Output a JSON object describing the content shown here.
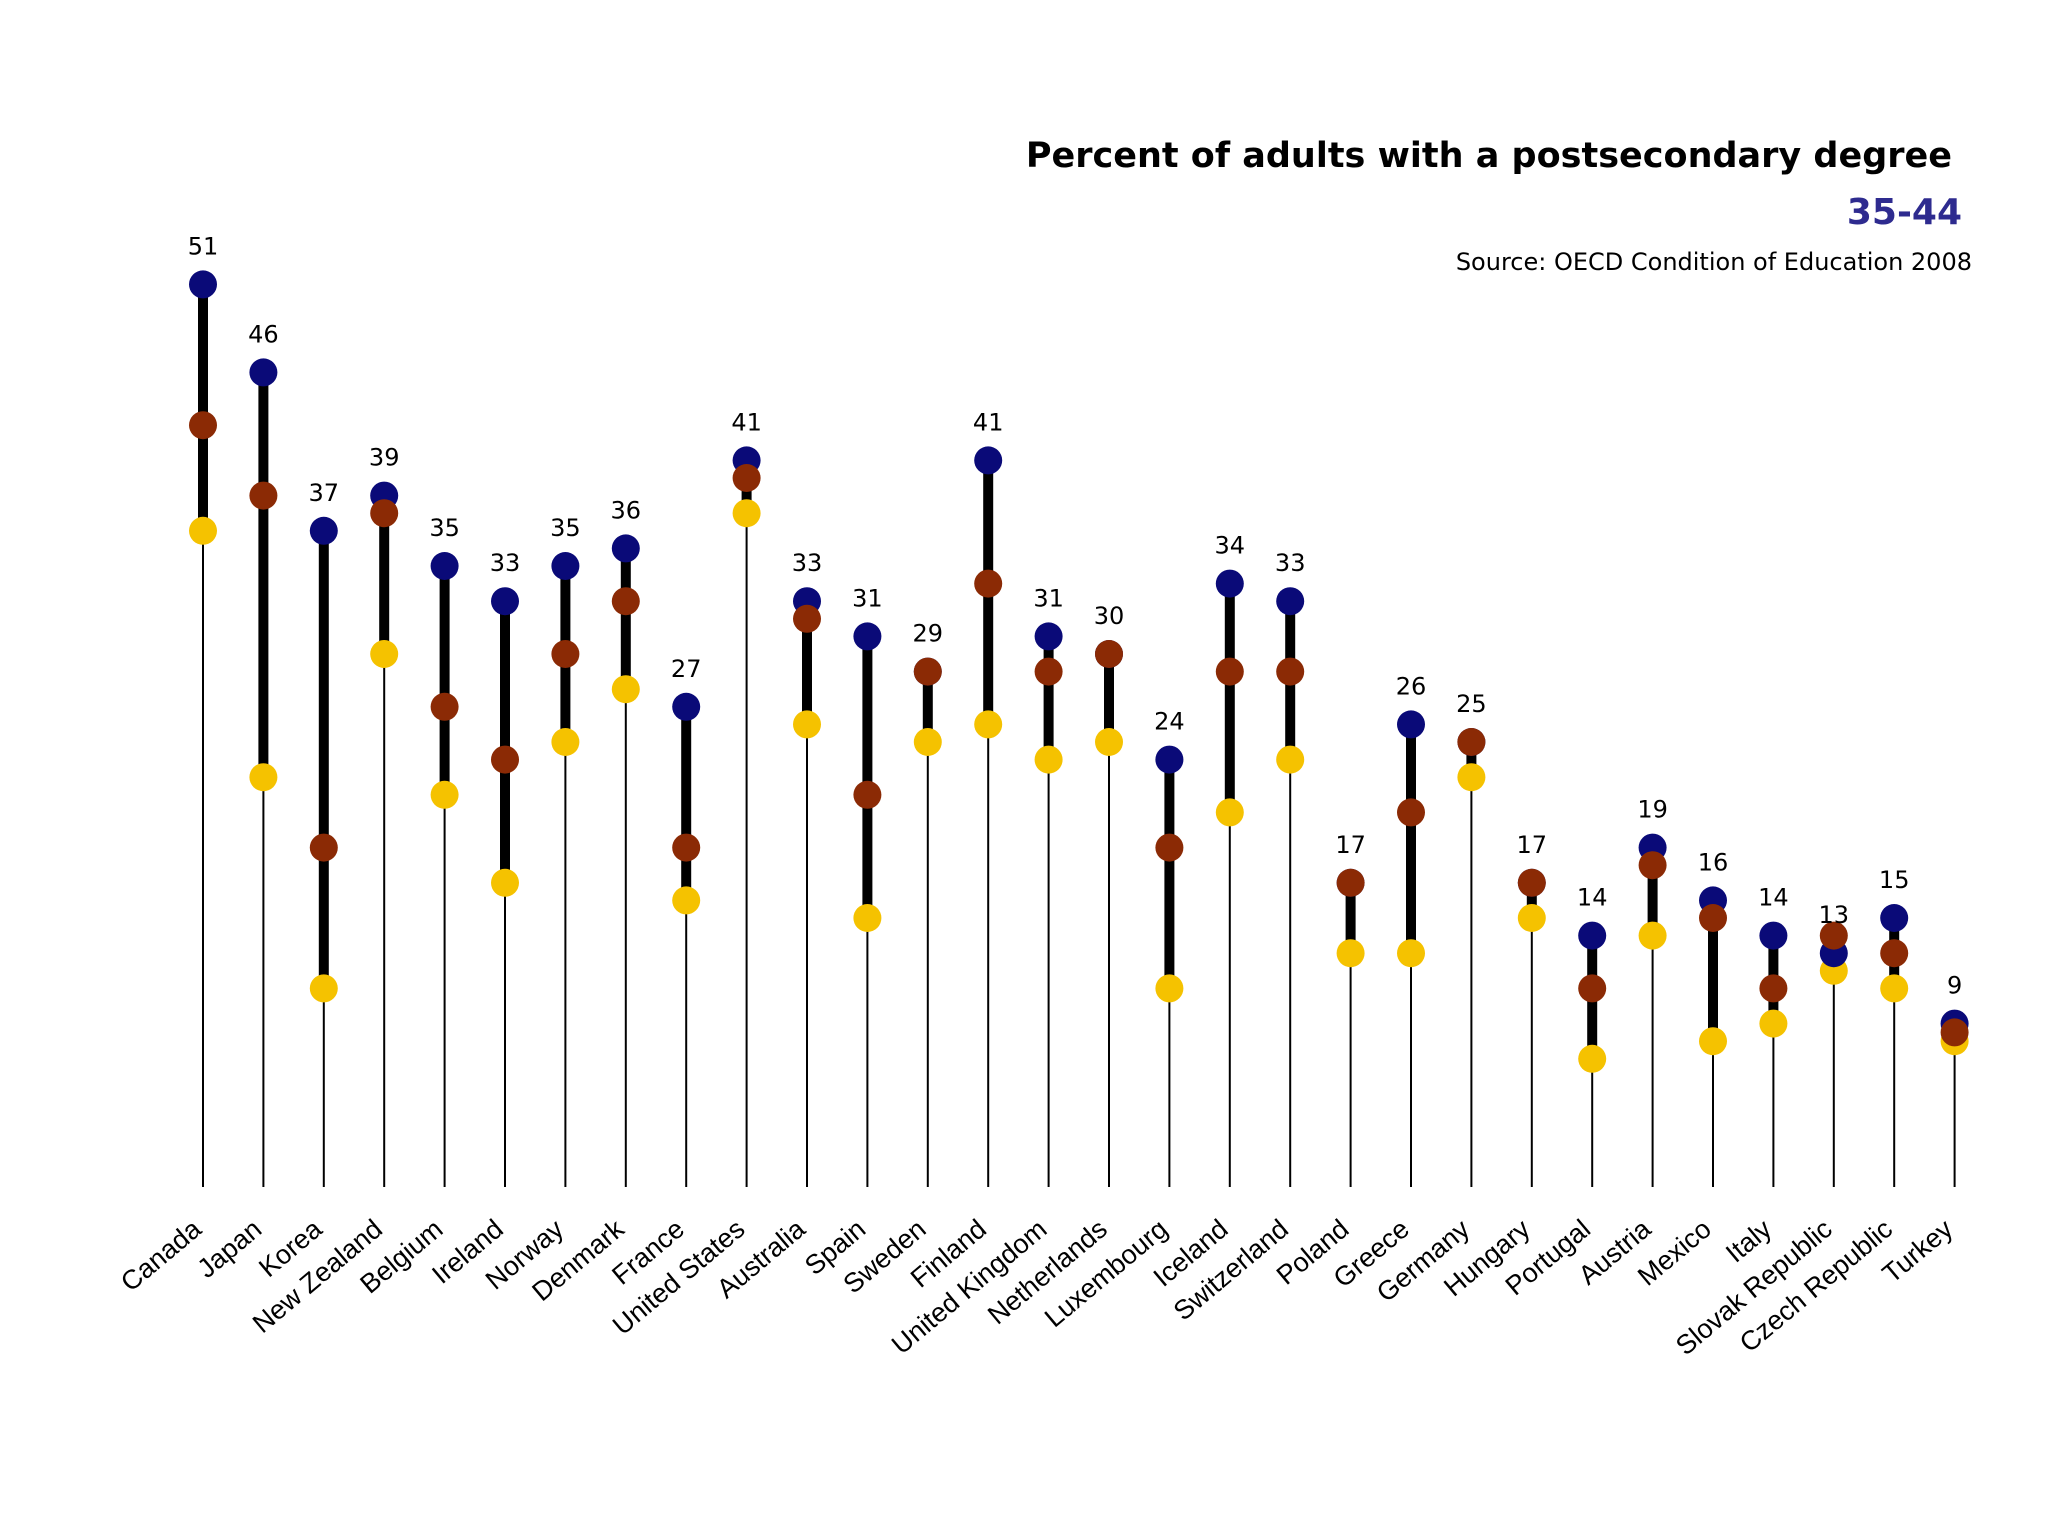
{
  "chart_data": {
    "type": "scatter",
    "title": "Percent of adults with a postsecondary degree",
    "subtitle": "35-44",
    "source": "Source: OECD Condition of Education 2008",
    "colors": {
      "age_35_44": "#0a0a78",
      "mid": "#8b2a05",
      "low": "#f5c200",
      "stem": "#000000"
    },
    "categories": [
      "Canada",
      "Japan",
      "Korea",
      "New Zealand",
      "Belgium",
      "Ireland",
      "Norway",
      "Denmark",
      "France",
      "United States",
      "Australia",
      "Spain",
      "Sweden",
      "Finland",
      "United Kingdom",
      "Netherlands",
      "Luxembourg",
      "Iceland",
      "Switzerland",
      "Poland",
      "Greece",
      "Germany",
      "Hungary",
      "Portugal",
      "Austria",
      "Mexico",
      "Italy",
      "Slovak Republic",
      "Czech Republic",
      "Turkey"
    ],
    "value_labels": [
      "51",
      "46",
      "37",
      "39",
      "35",
      "33",
      "35",
      "36",
      "27",
      "41",
      "33",
      "31",
      "29",
      "41",
      "31",
      "30",
      "24",
      "34",
      "33",
      "17",
      "26",
      "25",
      "17",
      "14",
      "19",
      "16",
      "14",
      "13",
      "15",
      "9"
    ],
    "series": [
      {
        "key": "age_35_44",
        "values": [
          51,
          46,
          37,
          39,
          35,
          33,
          35,
          36,
          27,
          41,
          33,
          31,
          29,
          41,
          31,
          30,
          24,
          34,
          33,
          17,
          26,
          25,
          17,
          14,
          19,
          16,
          14,
          13,
          15,
          9
        ]
      },
      {
        "key": "mid",
        "values": [
          43,
          39,
          19,
          38,
          27,
          24,
          30,
          33,
          19,
          40,
          32,
          22,
          29,
          34,
          29,
          30,
          19,
          29,
          29,
          17,
          21,
          25,
          17,
          11,
          18,
          15,
          11,
          14,
          13,
          8.5
        ]
      },
      {
        "key": "low",
        "values": [
          37,
          23,
          11,
          30,
          22,
          17,
          25,
          28,
          16,
          38,
          26,
          15,
          25,
          26,
          24,
          25,
          11,
          21,
          24,
          13,
          13,
          23,
          15,
          7,
          14,
          8,
          9,
          12,
          11,
          8
        ]
      }
    ],
    "ylim": [
      0,
      51
    ]
  }
}
